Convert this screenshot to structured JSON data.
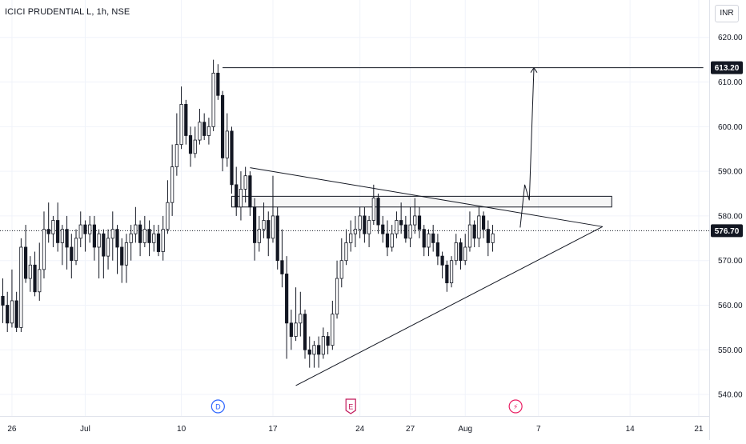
{
  "header": {
    "symbol": "ICICI PRUDENTIAL L, 1h, NSE",
    "currency": "INR"
  },
  "colors": {
    "up": "#26a69a",
    "down": "#131722",
    "candle": "#131722",
    "grid": "#f0f3fa",
    "axis_text": "#131722",
    "price_tag_bg": "#131722",
    "price_tag_text": "#ffffff",
    "event_dividend": "#2962ff",
    "event_earnings": "#c2185b",
    "event_split": "#e91e63"
  },
  "chart_data": {
    "type": "candlestick",
    "ylim": [
      535,
      623
    ],
    "y_ticks": [
      540,
      550,
      560,
      570,
      580,
      590,
      600,
      610,
      620
    ],
    "y_tick_labels": [
      "540.00",
      "550.00",
      "560.00",
      "570.00",
      "580.00",
      "590.00",
      "600.00",
      "610.00",
      "620.00"
    ],
    "x_ticks": [
      {
        "label": "26",
        "bar": 2
      },
      {
        "label": "Jul",
        "bar": 18
      },
      {
        "label": "10",
        "bar": 39
      },
      {
        "label": "17",
        "bar": 59
      },
      {
        "label": "24",
        "bar": 78
      },
      {
        "label": "27",
        "bar": 89
      },
      {
        "label": "Aug",
        "bar": 101
      },
      {
        "label": "7",
        "bar": 117
      },
      {
        "label": "14",
        "bar": 137
      },
      {
        "label": "21",
        "bar": 152
      }
    ],
    "price_labels": [
      {
        "label": "613.20",
        "value": 613.2
      },
      {
        "label": "576.70",
        "value": 576.7
      }
    ],
    "candles": [
      [
        562,
        560,
        566,
        556
      ],
      [
        560,
        556,
        563,
        554
      ],
      [
        556,
        561,
        568,
        555
      ],
      [
        561,
        555,
        563,
        554
      ],
      [
        555,
        573,
        575,
        554
      ],
      [
        573,
        566,
        578,
        565
      ],
      [
        566,
        569,
        571,
        563
      ],
      [
        569,
        563,
        572,
        562
      ],
      [
        563,
        568,
        574,
        561
      ],
      [
        568,
        577,
        581,
        566
      ],
      [
        577,
        576,
        583,
        574
      ],
      [
        576,
        579,
        580,
        573
      ],
      [
        579,
        574,
        583,
        572
      ],
      [
        574,
        577,
        578,
        569
      ],
      [
        577,
        573,
        580,
        568
      ],
      [
        573,
        570,
        576,
        566
      ],
      [
        570,
        575,
        577,
        569
      ],
      [
        575,
        578,
        581,
        573
      ],
      [
        578,
        576,
        579,
        572
      ],
      [
        576,
        578,
        580,
        574
      ],
      [
        578,
        573,
        580,
        570
      ],
      [
        573,
        576,
        577,
        566
      ],
      [
        576,
        571,
        577,
        566
      ],
      [
        571,
        575,
        577,
        568
      ],
      [
        575,
        577,
        581,
        570
      ],
      [
        577,
        573,
        578,
        567
      ],
      [
        573,
        569,
        575,
        565
      ],
      [
        569,
        574,
        576,
        565
      ],
      [
        574,
        576,
        578,
        570
      ],
      [
        576,
        578,
        582,
        574
      ],
      [
        578,
        574,
        579,
        571
      ],
      [
        574,
        577,
        580,
        573
      ],
      [
        577,
        574,
        579,
        571
      ],
      [
        574,
        576,
        578,
        572
      ],
      [
        576,
        572,
        578,
        571
      ],
      [
        572,
        577,
        580,
        570
      ],
      [
        577,
        583,
        588,
        576
      ],
      [
        583,
        591,
        596,
        580
      ],
      [
        591,
        596,
        603,
        589
      ],
      [
        596,
        605,
        609,
        595
      ],
      [
        605,
        598,
        606,
        596
      ],
      [
        598,
        594,
        600,
        591
      ],
      [
        594,
        597,
        600,
        593
      ],
      [
        597,
        601,
        604,
        596
      ],
      [
        601,
        598,
        603,
        597
      ],
      [
        598,
        600,
        602,
        596
      ],
      [
        600,
        612,
        615,
        599
      ],
      [
        612,
        607,
        614,
        606
      ],
      [
        607,
        593,
        608,
        590
      ],
      [
        593,
        599,
        603,
        591
      ],
      [
        599,
        587,
        600,
        585
      ],
      [
        587,
        582,
        591,
        580
      ],
      [
        582,
        586,
        590,
        579
      ],
      [
        586,
        589,
        591,
        583
      ],
      [
        589,
        582,
        590,
        580
      ],
      [
        582,
        574,
        584,
        570
      ],
      [
        574,
        577,
        580,
        572
      ],
      [
        577,
        579,
        583,
        575
      ],
      [
        579,
        575,
        581,
        571
      ],
      [
        575,
        580,
        589,
        574
      ],
      [
        580,
        570,
        582,
        568
      ],
      [
        570,
        567,
        577,
        564
      ],
      [
        567,
        556,
        571,
        548
      ],
      [
        556,
        553,
        559,
        550
      ],
      [
        553,
        556,
        564,
        552
      ],
      [
        556,
        558,
        563,
        553
      ],
      [
        558,
        550,
        559,
        548
      ],
      [
        550,
        549,
        553,
        546
      ],
      [
        549,
        551,
        552,
        546
      ],
      [
        551,
        549,
        553,
        546
      ],
      [
        549,
        553,
        555,
        548
      ],
      [
        553,
        551,
        554,
        549
      ],
      [
        551,
        558,
        561,
        550
      ],
      [
        558,
        566,
        570,
        557
      ],
      [
        566,
        570,
        575,
        564
      ],
      [
        570,
        574,
        577,
        569
      ],
      [
        574,
        576,
        579,
        572
      ],
      [
        576,
        577,
        580,
        573
      ],
      [
        577,
        580,
        582,
        575
      ],
      [
        580,
        576,
        582,
        574
      ],
      [
        576,
        579,
        580,
        573
      ],
      [
        579,
        584,
        587,
        578
      ],
      [
        584,
        578,
        585,
        576
      ],
      [
        578,
        576,
        580,
        574
      ],
      [
        576,
        573,
        579,
        571
      ],
      [
        573,
        576,
        578,
        572
      ],
      [
        576,
        579,
        581,
        575
      ],
      [
        579,
        578,
        583,
        576
      ],
      [
        578,
        575,
        580,
        574
      ],
      [
        575,
        578,
        582,
        573
      ],
      [
        578,
        580,
        584,
        576
      ],
      [
        580,
        577,
        582,
        575
      ],
      [
        577,
        573,
        578,
        571
      ],
      [
        573,
        576,
        577,
        571
      ],
      [
        576,
        574,
        578,
        572
      ],
      [
        574,
        571,
        576,
        569
      ],
      [
        571,
        569,
        572,
        566
      ],
      [
        569,
        565,
        570,
        563
      ],
      [
        565,
        570,
        571,
        564
      ],
      [
        570,
        574,
        576,
        569
      ],
      [
        574,
        570,
        575,
        568
      ],
      [
        570,
        573,
        576,
        569
      ],
      [
        573,
        578,
        581,
        572
      ],
      [
        578,
        575,
        579,
        573
      ],
      [
        575,
        580,
        582,
        573
      ],
      [
        580,
        577,
        581,
        575
      ],
      [
        577,
        574,
        579,
        571
      ],
      [
        574,
        576,
        578,
        572
      ]
    ],
    "annotations": {
      "resistance_line": {
        "x1_bar": 48,
        "x2_bar": 153,
        "y": 613.2
      },
      "triangle_upper": {
        "x1_bar": 54,
        "y1": 590.8,
        "x2_bar": 131,
        "y2": 577.6
      },
      "triangle_lower": {
        "x1_bar": 64,
        "y1": 542,
        "x2_bar": 131,
        "y2": 577.6
      },
      "supply_zone": {
        "x1_bar": 50,
        "x2_bar": 133,
        "y_top": 584.4,
        "y_bottom": 582
      },
      "projection_path": [
        {
          "bar": 113,
          "y": 577.4
        },
        {
          "bar": 114,
          "y": 587
        },
        {
          "bar": 115,
          "y": 583.5
        },
        {
          "bar": 116,
          "y": 613.2
        }
      ],
      "current_price_line": 576.7
    },
    "events": [
      {
        "label": "D",
        "bar": 47,
        "kind": "dividend"
      },
      {
        "label": "E",
        "bar": 76,
        "kind": "earnings"
      },
      {
        "label": "⚡",
        "bar": 112,
        "kind": "split"
      }
    ]
  }
}
